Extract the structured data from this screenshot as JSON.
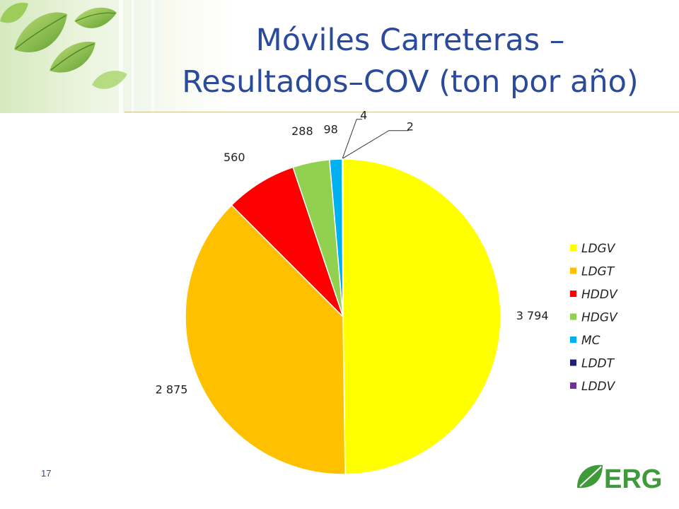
{
  "slide": {
    "title_line1": "Móviles Carreteras –",
    "title_line2": "Resultados–COV (ton por año)",
    "page_number": "17",
    "logo_text": "ERG"
  },
  "chart_data": {
    "type": "pie",
    "title": "",
    "categories": [
      "LDGV",
      "LDGT",
      "HDDV",
      "HDGV",
      "MC",
      "LDDT",
      "LDDV"
    ],
    "values": [
      3794,
      2875,
      560,
      288,
      98,
      4,
      2
    ],
    "data_labels": [
      "3 794",
      "2 875",
      "560",
      "288",
      "98",
      "4",
      "2"
    ],
    "colors": [
      "#ffff00",
      "#ffc000",
      "#ff0000",
      "#92d050",
      "#00b0f0",
      "#1f1f7a",
      "#7030a0"
    ],
    "legend": "right"
  }
}
